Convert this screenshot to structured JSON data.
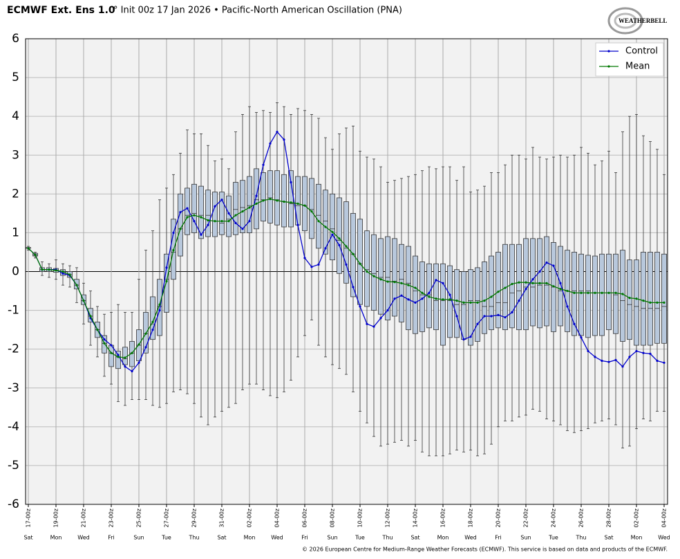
{
  "chart_data": {
    "type": "box",
    "title": "ECMWF Ext. Ens 1.0",
    "subtitle": "° Init 00z 17 Jan 2026 • Pacific-North American Oscillation (PNA)",
    "credit": "© 2026 European Centre for Medium-Range Weather Forecasts (ECMWF). This service is based on data and products of the ECMWF.",
    "logo": "WEATHERBELL",
    "categories": [
      "17-00z",
      null,
      null,
      null,
      "19-00z",
      null,
      null,
      null,
      "21-00z",
      null,
      null,
      null,
      "23-00z",
      null,
      null,
      null,
      "25-00z",
      null,
      null,
      null,
      "27-00z",
      null,
      null,
      null,
      "29-00z",
      null,
      null,
      null,
      "31-00z",
      null,
      null,
      null,
      "02-00z",
      null,
      null,
      null,
      "04-00z",
      null,
      null,
      null,
      "06-00z",
      null,
      null,
      null,
      "08-00z",
      null,
      null,
      null,
      "10-00z",
      null,
      null,
      null,
      "12-00z",
      null,
      null,
      null,
      "14-00z",
      null,
      null,
      null,
      "16-00z",
      null,
      null,
      null,
      "18-00z",
      null,
      null,
      null,
      "20-00z",
      null,
      null,
      null,
      "22-00z",
      null,
      null,
      null,
      "24-00z",
      null,
      null,
      null,
      "26-00z",
      null,
      null,
      null,
      "28-00z",
      null,
      null,
      null,
      "02-00z",
      null,
      null,
      null,
      "04-00z"
    ],
    "weekdays": [
      "Sat",
      null,
      null,
      null,
      "Mon",
      null,
      null,
      null,
      "Wed",
      null,
      null,
      null,
      "Fri",
      null,
      null,
      null,
      "Sun",
      null,
      null,
      null,
      "Tue",
      null,
      null,
      null,
      "Thu",
      null,
      null,
      null,
      "Sat",
      null,
      null,
      null,
      "Mon",
      null,
      null,
      null,
      "Wed",
      null,
      null,
      null,
      "Fri",
      null,
      null,
      null,
      "Sun",
      null,
      null,
      null,
      "Tue",
      null,
      null,
      null,
      "Thu",
      null,
      null,
      null,
      "Sat",
      null,
      null,
      null,
      "Mon",
      null,
      null,
      null,
      "Wed",
      null,
      null,
      null,
      "Fri",
      null,
      null,
      null,
      "Sun",
      null,
      null,
      null,
      "Tue",
      null,
      null,
      null,
      "Thu",
      null,
      null,
      null,
      "Sat",
      null,
      null,
      null,
      "Mon",
      null,
      null,
      null,
      "Wed"
    ],
    "box_color": "#b8c8dc",
    "min": [
      0.55,
      0.35,
      -0.1,
      -0.15,
      -0.2,
      -0.35,
      -0.4,
      -0.8,
      -1.35,
      -1.9,
      -2.2,
      -2.7,
      -2.9,
      -3.35,
      -3.45,
      -3.3,
      -3.3,
      -3.3,
      -3.45,
      -3.5,
      -3.4,
      -3.1,
      -3.05,
      -3.15,
      -3.4,
      -3.75,
      -3.95,
      -3.75,
      -3.6,
      -3.5,
      -3.4,
      -3.05,
      -2.9,
      -2.9,
      -3.05,
      -3.2,
      -3.25,
      -3.1,
      -2.8,
      -2.2,
      -1.65,
      -1.25,
      -1.9,
      -2.2,
      -2.4,
      -2.5,
      -2.65,
      -3.1,
      -3.6,
      -3.9,
      -4.25,
      -4.5,
      -4.45,
      -4.4,
      -4.35,
      -4.5,
      -4.35,
      -4.65,
      -4.75,
      -4.75,
      -4.75,
      -4.7,
      -4.6,
      -4.65,
      -4.6,
      -4.75,
      -4.7,
      -4.45,
      -4.0,
      -3.85,
      -3.85,
      -3.75,
      -3.7,
      -3.55,
      -3.6,
      -3.8,
      -3.85,
      -3.95,
      -4.1,
      -4.15,
      -4.1,
      -4.05,
      -3.9,
      -3.85,
      -3.8,
      -3.95,
      -4.55,
      -4.5,
      -4.05,
      -3.8,
      -3.85,
      -3.6,
      -3.6
    ],
    "q1": [
      0.6,
      0.4,
      0,
      0,
      -0.02,
      -0.1,
      -0.15,
      -0.45,
      -0.85,
      -1.3,
      -1.7,
      -2.1,
      -2.45,
      -2.5,
      -2.4,
      -2.45,
      -2.3,
      -2.1,
      -1.75,
      -1.65,
      -1.05,
      -0.2,
      0.4,
      0.95,
      1.0,
      0.85,
      0.9,
      0.9,
      0.95,
      0.9,
      0.95,
      1.0,
      1.0,
      1.1,
      1.3,
      1.25,
      1.2,
      1.15,
      1.15,
      1.2,
      1.05,
      0.85,
      0.6,
      0.45,
      0.3,
      -0.05,
      -0.3,
      -0.65,
      -0.85,
      -0.9,
      -1.0,
      -1.1,
      -1.25,
      -1.15,
      -1.3,
      -1.5,
      -1.6,
      -1.55,
      -1.45,
      -1.5,
      -1.9,
      -1.7,
      -1.7,
      -1.75,
      -1.9,
      -1.8,
      -1.6,
      -1.5,
      -1.45,
      -1.5,
      -1.45,
      -1.5,
      -1.5,
      -1.4,
      -1.45,
      -1.4,
      -1.55,
      -1.4,
      -1.55,
      -1.65,
      -1.65,
      -1.7,
      -1.65,
      -1.65,
      -1.5,
      -1.6,
      -1.8,
      -1.75,
      -1.9,
      -1.9,
      -1.9,
      -1.85,
      -1.85
    ],
    "median": [
      0.6,
      0.43,
      0.05,
      0.05,
      0.03,
      0,
      -0.08,
      -0.35,
      -0.75,
      -1.15,
      -1.5,
      -1.85,
      -2.1,
      -2.2,
      -2.25,
      -2.1,
      -1.9,
      -1.6,
      -1.35,
      -0.9,
      -0.2,
      0.5,
      1.1,
      1.45,
      1.5,
      1.45,
      1.45,
      1.3,
      1.25,
      1.35,
      1.6,
      1.65,
      1.7,
      1.85,
      1.85,
      1.9,
      1.85,
      1.8,
      1.75,
      1.7,
      1.7,
      1.6,
      1.45,
      1.3,
      1.1,
      0.8,
      0.6,
      0.45,
      0.2,
      0.05,
      -0.05,
      -0.15,
      -0.15,
      -0.25,
      -0.2,
      -0.3,
      -0.5,
      -0.6,
      -0.6,
      -0.75,
      -0.75,
      -0.75,
      -0.85,
      -0.85,
      -0.75,
      -0.75,
      -0.9,
      -0.9,
      -0.8,
      -0.8,
      -0.55,
      -0.5,
      -0.4,
      -0.4,
      -0.35,
      -0.35,
      -0.4,
      -0.5,
      -0.5,
      -0.5,
      -0.5,
      -0.5,
      -0.55,
      -0.55,
      -0.55,
      -0.6,
      -0.75,
      -0.85,
      -0.9,
      -0.95,
      -0.95,
      -0.95,
      -0.9
    ],
    "q3": [
      0.62,
      0.47,
      0.1,
      0.1,
      0.08,
      0.05,
      0,
      -0.2,
      -0.6,
      -0.95,
      -1.3,
      -1.65,
      -1.9,
      -2.05,
      -1.95,
      -1.8,
      -1.5,
      -1.05,
      -0.65,
      -0.2,
      0.45,
      1.35,
      2.0,
      2.15,
      2.25,
      2.2,
      2.1,
      2.05,
      2.05,
      1.95,
      2.3,
      2.35,
      2.45,
      2.65,
      2.55,
      2.6,
      2.6,
      2.5,
      2.6,
      2.45,
      2.45,
      2.4,
      2.25,
      2.1,
      2.0,
      1.9,
      1.8,
      1.5,
      1.35,
      1.05,
      0.95,
      0.85,
      0.9,
      0.85,
      0.7,
      0.65,
      0.4,
      0.25,
      0.2,
      0.2,
      0.2,
      0.15,
      0.05,
      0,
      0.05,
      0.1,
      0.25,
      0.4,
      0.5,
      0.7,
      0.7,
      0.7,
      0.85,
      0.85,
      0.85,
      0.9,
      0.75,
      0.65,
      0.55,
      0.5,
      0.45,
      0.42,
      0.4,
      0.45,
      0.45,
      0.45,
      0.55,
      0.3,
      0.3,
      0.5,
      0.5,
      0.5,
      0.45
    ],
    "max": [
      0.65,
      0.5,
      0.25,
      0.2,
      0.3,
      0.2,
      0.15,
      0.1,
      -0.3,
      -0.5,
      -0.9,
      -1.1,
      -1.05,
      -0.85,
      -1.05,
      -1.05,
      -0.2,
      0.55,
      1.05,
      1.85,
      2.15,
      2.5,
      3.05,
      3.65,
      3.55,
      3.55,
      3.25,
      2.85,
      2.9,
      2.65,
      3.6,
      4.05,
      4.25,
      4.1,
      4.15,
      4.1,
      4.35,
      4.25,
      4.05,
      4.2,
      4.15,
      4.05,
      3.95,
      3.45,
      3.15,
      3.55,
      3.7,
      3.75,
      3.1,
      2.95,
      2.9,
      2.7,
      2.3,
      2.35,
      2.4,
      2.45,
      2.5,
      2.6,
      2.7,
      2.65,
      2.7,
      2.7,
      2.35,
      2.7,
      2.05,
      2.1,
      2.2,
      2.55,
      2.55,
      2.75,
      3.0,
      3.0,
      2.9,
      3.2,
      2.95,
      2.9,
      2.95,
      3.0,
      2.95,
      3.0,
      3.2,
      3.05,
      2.75,
      2.85,
      3.1,
      2.55,
      3.6,
      4.0,
      4.05,
      3.5,
      3.35,
      3.15,
      2.5
    ],
    "series": [
      {
        "name": "Control",
        "color": "#0000cc",
        "values": [
          0.6,
          0.43,
          0.05,
          0.05,
          0.05,
          -0.05,
          -0.1,
          -0.35,
          -0.75,
          -1.2,
          -1.5,
          -1.75,
          -1.9,
          -2.15,
          -2.45,
          -2.57,
          -2.35,
          -1.95,
          -1.5,
          -1.0,
          0.1,
          1.0,
          1.53,
          1.63,
          1.3,
          0.95,
          1.2,
          1.68,
          1.85,
          1.5,
          1.25,
          1.1,
          1.3,
          1.95,
          2.75,
          3.3,
          3.6,
          3.4,
          2.3,
          1.2,
          0.35,
          0.12,
          0.18,
          0.6,
          0.95,
          0.68,
          0.18,
          -0.4,
          -0.9,
          -1.35,
          -1.42,
          -1.2,
          -1.0,
          -0.7,
          -0.62,
          -0.72,
          -0.8,
          -0.7,
          -0.55,
          -0.22,
          -0.3,
          -0.6,
          -1.15,
          -1.75,
          -1.68,
          -1.35,
          -1.15,
          -1.15,
          -1.12,
          -1.18,
          -1.05,
          -0.75,
          -0.45,
          -0.2,
          0,
          0.23,
          0.15,
          -0.3,
          -0.9,
          -1.35,
          -1.7,
          -2.05,
          -2.2,
          -2.3,
          -2.33,
          -2.28,
          -2.45,
          -2.2,
          -2.05,
          -2.1,
          -2.12,
          -2.3,
          -2.35
        ]
      },
      {
        "name": "Mean",
        "color": "#007700",
        "values": [
          0.6,
          0.43,
          0.05,
          0.05,
          0.03,
          0,
          -0.08,
          -0.35,
          -0.75,
          -1.15,
          -1.5,
          -1.85,
          -2.1,
          -2.2,
          -2.22,
          -2.1,
          -1.88,
          -1.6,
          -1.3,
          -0.85,
          -0.25,
          0.55,
          1.1,
          1.4,
          1.45,
          1.4,
          1.32,
          1.3,
          1.3,
          1.3,
          1.45,
          1.55,
          1.65,
          1.75,
          1.83,
          1.87,
          1.83,
          1.8,
          1.78,
          1.75,
          1.7,
          1.55,
          1.3,
          1.15,
          1.02,
          0.85,
          0.65,
          0.45,
          0.2,
          0,
          -0.12,
          -0.2,
          -0.26,
          -0.27,
          -0.3,
          -0.35,
          -0.42,
          -0.55,
          -0.65,
          -0.7,
          -0.72,
          -0.72,
          -0.75,
          -0.8,
          -0.8,
          -0.8,
          -0.75,
          -0.65,
          -0.52,
          -0.42,
          -0.32,
          -0.28,
          -0.28,
          -0.3,
          -0.3,
          -0.3,
          -0.38,
          -0.45,
          -0.5,
          -0.55,
          -0.55,
          -0.55,
          -0.55,
          -0.55,
          -0.55,
          -0.55,
          -0.58,
          -0.68,
          -0.7,
          -0.75,
          -0.8,
          -0.8,
          -0.8
        ]
      }
    ],
    "ylim": [
      -6,
      6
    ],
    "yticks": [
      -6,
      -5,
      -4,
      -3,
      -2,
      -1,
      0,
      1,
      2,
      3,
      4,
      5,
      6
    ],
    "grid": true,
    "legend": "upper right"
  }
}
